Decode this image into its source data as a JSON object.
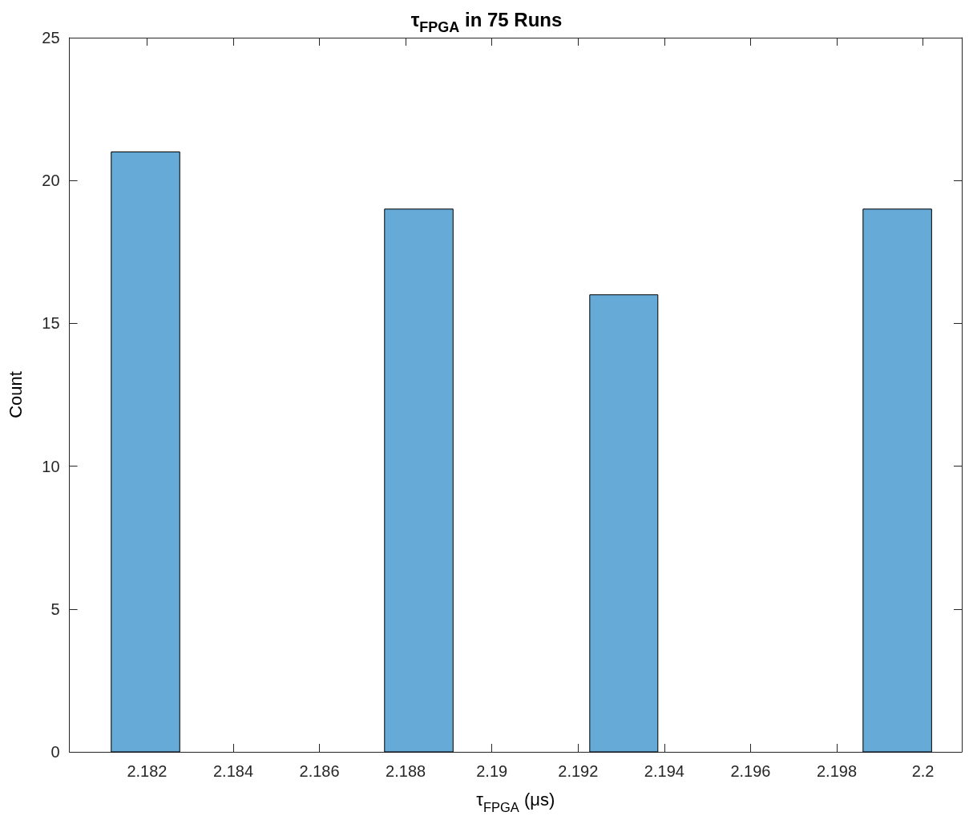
{
  "chart_data": {
    "type": "histogram",
    "title": "τ$_{FPGA}$ in 75 Runs",
    "xlabel": "τ$_{FPGA}$ (μs)",
    "ylabel": "Count",
    "bins": [
      2.18117,
      2.18276,
      2.18751,
      2.1891,
      2.19227,
      2.19385,
      2.19861,
      2.2002
    ],
    "values": [
      21,
      0,
      19,
      0,
      16,
      0,
      19
    ],
    "color": "#66aad7",
    "xlim": [
      2.1802,
      2.2009
    ],
    "xticks": [
      2.182,
      2.184,
      2.186,
      2.188,
      2.19,
      2.192,
      2.194,
      2.196,
      2.198,
      2.2
    ],
    "ylim": [
      0,
      25
    ],
    "yticks": [
      0,
      5,
      10,
      15,
      20,
      25
    ],
    "grid": false
  }
}
